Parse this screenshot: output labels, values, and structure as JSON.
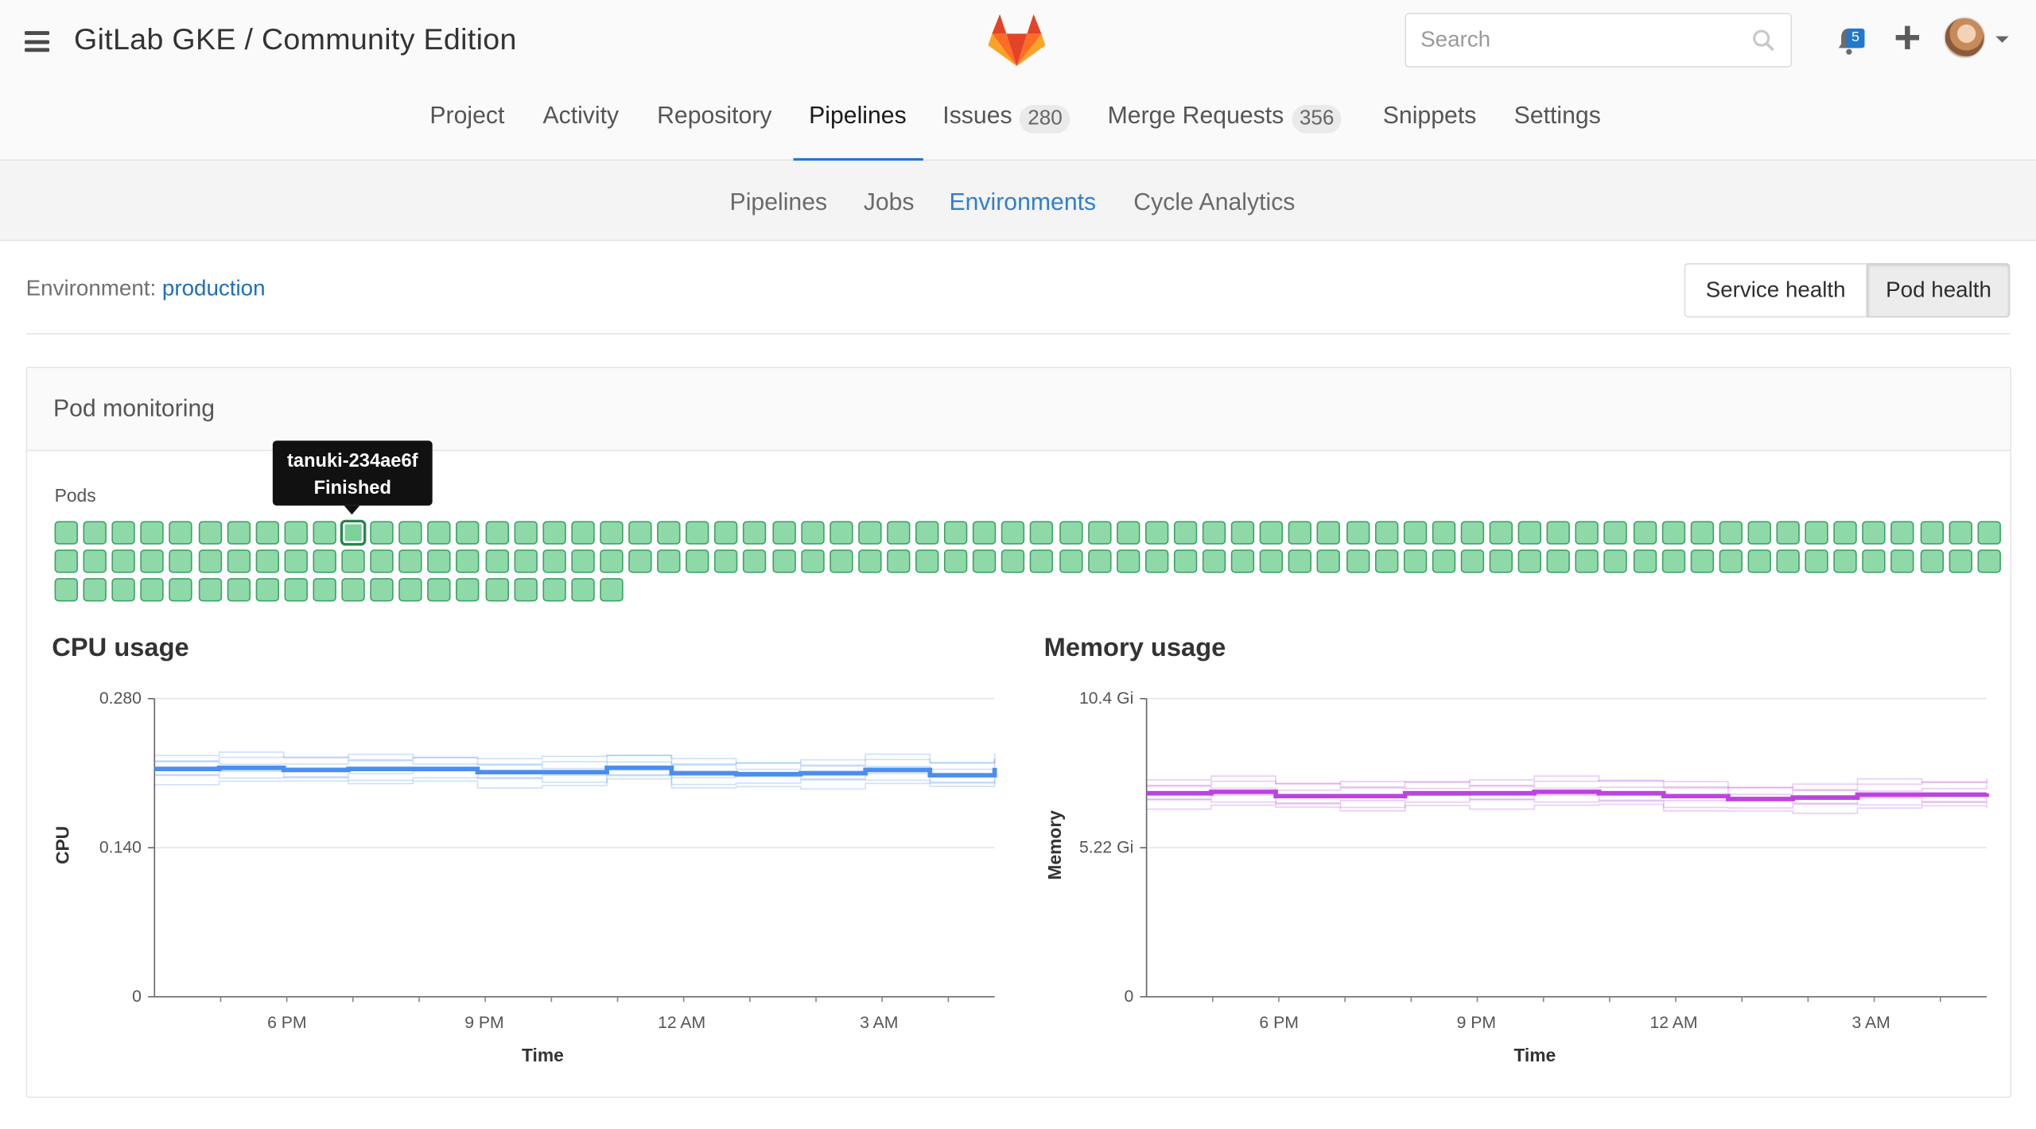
{
  "header": {
    "title": "GitLab GKE / Community Edition",
    "search_placeholder": "Search",
    "notification_count": "5"
  },
  "nav": {
    "items": [
      {
        "label": "Project",
        "count": ""
      },
      {
        "label": "Activity",
        "count": ""
      },
      {
        "label": "Repository",
        "count": ""
      },
      {
        "label": "Pipelines",
        "count": "",
        "active": true
      },
      {
        "label": "Issues",
        "count": "280"
      },
      {
        "label": "Merge Requests",
        "count": "356"
      },
      {
        "label": "Snippets",
        "count": ""
      },
      {
        "label": "Settings",
        "count": ""
      }
    ]
  },
  "subnav": {
    "items": [
      {
        "label": "Pipelines"
      },
      {
        "label": "Jobs"
      },
      {
        "label": "Environments",
        "active": true
      },
      {
        "label": "Cycle Analytics"
      }
    ]
  },
  "environment": {
    "label": "Environment:",
    "name": "production",
    "service_health_label": "Service health",
    "pod_health_label": "Pod health"
  },
  "panel": {
    "title": "Pod monitoring",
    "pods_label": "Pods",
    "pod_count": 156,
    "pod_status": "Finished",
    "tooltip": {
      "pod": "tanuki-234ae6f",
      "status": "Finished"
    }
  },
  "colors": {
    "pod_fill": "#8fd9a8",
    "pod_border": "#3ca364",
    "cpu_series": "#4a8ef0",
    "memory_series": "#bb44e0",
    "link": "#1f6fb7"
  },
  "chart_data": [
    {
      "type": "line",
      "title": "CPU usage",
      "xlabel": "Time",
      "ylabel": "CPU",
      "x_ticks": [
        "6 PM",
        "9 PM",
        "12 AM",
        "3 AM"
      ],
      "y_ticks": [
        "0",
        "0.140",
        "0.280"
      ],
      "ylim": [
        0,
        0.28
      ],
      "series": [
        {
          "name": "",
          "x": [
            0,
            1,
            2,
            3,
            4,
            5,
            6,
            7,
            8,
            9,
            10,
            11,
            12,
            13
          ],
          "values": [
            0.214,
            0.215,
            0.213,
            0.214,
            0.214,
            0.211,
            0.211,
            0.215,
            0.21,
            0.209,
            0.21,
            0.213,
            0.208,
            0.215
          ]
        }
      ],
      "grid": true
    },
    {
      "type": "line",
      "title": "Memory usage",
      "xlabel": "Time",
      "ylabel": "Memory",
      "x_ticks": [
        "6 PM",
        "9 PM",
        "12 AM",
        "3 AM"
      ],
      "y_ticks": [
        "0",
        "5.22 Gi",
        "10.4 Gi"
      ],
      "ylim": [
        0,
        10.4
      ],
      "series": [
        {
          "name": "",
          "x": [
            0,
            1,
            2,
            3,
            4,
            5,
            6,
            7,
            8,
            9,
            10,
            11,
            12,
            13
          ],
          "values": [
            7.1,
            7.15,
            7.0,
            7.0,
            7.1,
            7.1,
            7.15,
            7.1,
            7.0,
            6.9,
            6.95,
            7.05,
            7.05,
            7.1
          ]
        }
      ],
      "grid": true
    }
  ]
}
